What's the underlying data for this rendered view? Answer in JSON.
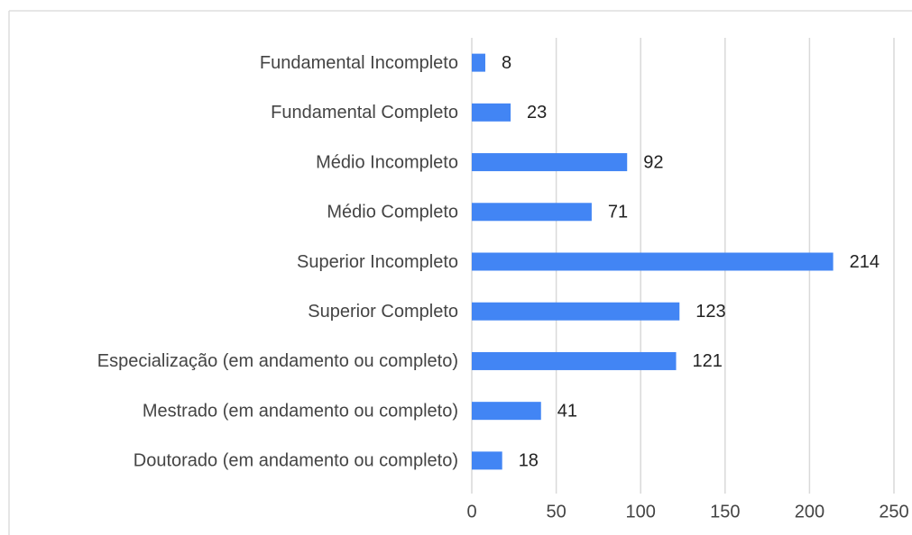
{
  "chart_data": {
    "type": "bar",
    "orientation": "horizontal",
    "categories": [
      "Fundamental Incompleto",
      "Fundamental Completo",
      "Médio Incompleto",
      "Médio Completo",
      "Superior Incompleto",
      "Superior Completo",
      "Especialização (em andamento ou completo)",
      "Mestrado (em andamento ou completo)",
      "Doutorado (em andamento ou completo)"
    ],
    "values": [
      8,
      23,
      92,
      71,
      214,
      123,
      121,
      41,
      18
    ],
    "color": "#4285f4",
    "xlim": [
      0,
      250
    ],
    "xticks": [
      0,
      50,
      100,
      150,
      200,
      250
    ],
    "grid": true
  }
}
